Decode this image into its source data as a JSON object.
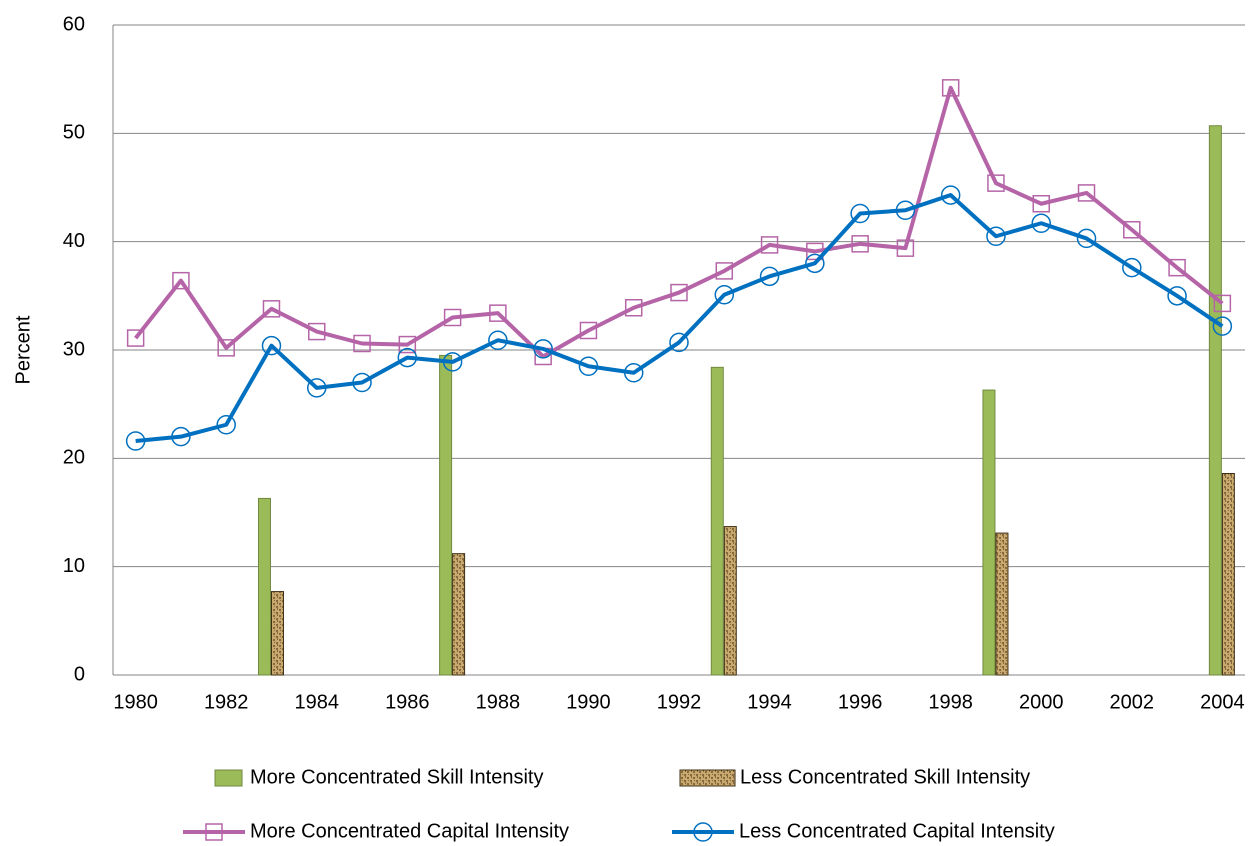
{
  "chart_data": {
    "type": "combo",
    "y_label": "Percent",
    "categories": [
      "1980",
      null,
      "1982",
      null,
      "1984",
      null,
      "1986",
      null,
      "1988",
      null,
      "1990",
      null,
      "1992",
      null,
      "1994",
      null,
      "1996",
      null,
      "1998",
      null,
      "2000",
      null,
      "2002",
      null,
      "2004"
    ],
    "ylim": [
      0,
      60
    ],
    "yticks": [
      0,
      10,
      20,
      30,
      40,
      50,
      60
    ],
    "grid": true,
    "legend": "bottom",
    "series": [
      {
        "name": "More Concentrated Skill Intensity",
        "type": "bar",
        "color": "#9bbb59",
        "values": [
          null,
          null,
          null,
          16.3,
          null,
          null,
          null,
          29.5,
          null,
          null,
          null,
          null,
          null,
          28.4,
          null,
          null,
          null,
          null,
          null,
          26.3,
          null,
          null,
          null,
          null,
          50.7
        ]
      },
      {
        "name": "Less Concentrated Skill Intensity",
        "type": "bar",
        "color": "#c9a96e",
        "values": [
          null,
          null,
          null,
          7.7,
          null,
          null,
          null,
          11.2,
          null,
          null,
          null,
          null,
          null,
          13.7,
          null,
          null,
          null,
          null,
          null,
          13.1,
          null,
          null,
          null,
          null,
          18.6
        ]
      },
      {
        "name": "More Concentrated Capital Intensity",
        "type": "line",
        "marker": "square",
        "color": "#b565a7",
        "values": [
          31.1,
          36.4,
          30.2,
          33.8,
          31.7,
          30.6,
          30.5,
          33.0,
          33.4,
          29.4,
          31.8,
          33.9,
          35.3,
          37.3,
          39.7,
          39.1,
          39.8,
          39.4,
          54.2,
          45.4,
          43.5,
          44.5,
          41.1,
          37.6,
          34.3
        ]
      },
      {
        "name": "Less Concentrated Capital Intensity",
        "type": "line",
        "marker": "circle",
        "color": "#0070c0",
        "values": [
          21.6,
          22.0,
          23.1,
          30.4,
          26.5,
          27.0,
          29.3,
          28.9,
          30.9,
          30.1,
          28.5,
          27.9,
          30.7,
          35.1,
          36.8,
          38.0,
          42.6,
          42.9,
          44.3,
          40.5,
          41.7,
          40.3,
          37.6,
          35.0,
          32.2
        ]
      }
    ]
  }
}
